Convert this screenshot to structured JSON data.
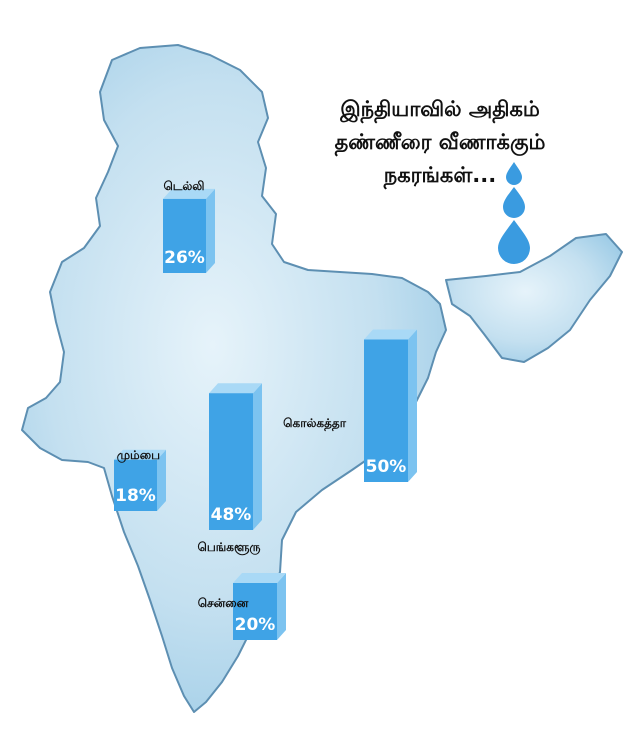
{
  "headline": {
    "lines": [
      "இந்தியாவில் அதிகம்",
      "தண்ணீரை வீணாக்கும்",
      "நகரங்கள்..."
    ]
  },
  "colors": {
    "bar_front": "#3fa3e6",
    "bar_side": "#7cc3f0",
    "bar_top": "#a9d9f6",
    "map_fill": "#c7e2f1",
    "map_edge": "#5d8fb2",
    "drop": "#3a9be0",
    "label_text": "#111111",
    "value_text": "#ffffff"
  },
  "chart_data": {
    "type": "bar",
    "title": "இந்தியாவில் அதிகம் தண்ணீரை வீணாக்கும் நகரங்கள்...",
    "unit": "%",
    "categories": [
      "டெல்லி",
      "மும்பை",
      "பெங்களூரு",
      "கொல்கத்தா",
      "சென்னை"
    ],
    "values": [
      26,
      18,
      48,
      50,
      20
    ],
    "data_labels": [
      "26%",
      "18%",
      "48%",
      "50%",
      "20%"
    ]
  }
}
